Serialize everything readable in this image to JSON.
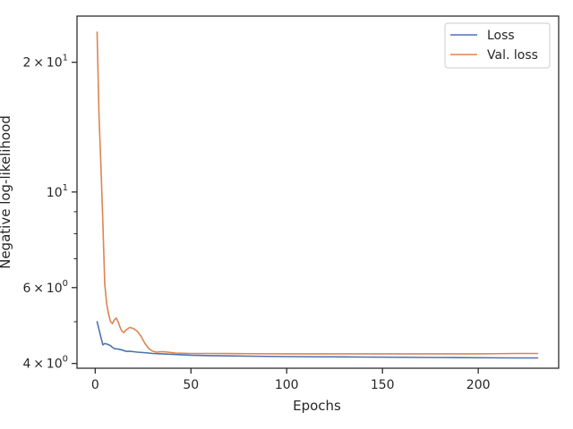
{
  "chart_data": {
    "type": "line",
    "title": "",
    "xlabel": "Epochs",
    "ylabel": "Negative log-likelihood",
    "xlim": [
      -9.5,
      242
    ],
    "ylim": [
      3.9,
      25.6
    ],
    "xscale": "linear",
    "yscale": "log",
    "grid": false,
    "legend_position": "top-right",
    "x_ticks": [
      {
        "value": 0,
        "label": "0"
      },
      {
        "value": 50,
        "label": "50"
      },
      {
        "value": 100,
        "label": "100"
      },
      {
        "value": 150,
        "label": "150"
      },
      {
        "value": 200,
        "label": "200"
      }
    ],
    "y_ticks": [
      {
        "value": 4,
        "base": "4",
        "sym": "×",
        "exp_base": "10",
        "exp": "0"
      },
      {
        "value": 6,
        "base": "6",
        "sym": "×",
        "exp_base": "10",
        "exp": "0"
      },
      {
        "value": 10,
        "base": "",
        "sym": "",
        "exp_base": "10",
        "exp": "1"
      },
      {
        "value": 20,
        "base": "2",
        "sym": "×",
        "exp_base": "10",
        "exp": "1"
      }
    ],
    "y_minor_ticks": [
      3,
      5,
      7,
      8,
      9,
      30
    ],
    "series": [
      {
        "name": "Loss",
        "color": "#4c72b0",
        "points": [
          [
            1,
            5.0
          ],
          [
            2,
            4.8
          ],
          [
            3,
            4.6
          ],
          [
            4,
            4.42
          ],
          [
            5,
            4.45
          ],
          [
            6,
            4.44
          ],
          [
            7,
            4.42
          ],
          [
            8,
            4.4
          ],
          [
            9,
            4.36
          ],
          [
            10,
            4.33
          ],
          [
            12,
            4.32
          ],
          [
            14,
            4.3
          ],
          [
            16,
            4.27
          ],
          [
            18,
            4.27
          ],
          [
            20,
            4.26
          ],
          [
            22,
            4.25
          ],
          [
            25,
            4.24
          ],
          [
            28,
            4.23
          ],
          [
            30,
            4.22
          ],
          [
            35,
            4.21
          ],
          [
            40,
            4.2
          ],
          [
            45,
            4.19
          ],
          [
            50,
            4.18
          ],
          [
            60,
            4.17
          ],
          [
            70,
            4.165
          ],
          [
            80,
            4.16
          ],
          [
            90,
            4.155
          ],
          [
            100,
            4.15
          ],
          [
            120,
            4.145
          ],
          [
            140,
            4.14
          ],
          [
            160,
            4.135
          ],
          [
            180,
            4.13
          ],
          [
            200,
            4.125
          ],
          [
            220,
            4.12
          ],
          [
            231,
            4.12
          ]
        ]
      },
      {
        "name": "Val. loss",
        "color": "#dd8452",
        "points": [
          [
            1,
            23.5
          ],
          [
            2,
            15.0
          ],
          [
            3,
            11.5
          ],
          [
            4,
            8.5
          ],
          [
            5,
            6.1
          ],
          [
            6,
            5.5
          ],
          [
            7,
            5.2
          ],
          [
            8,
            5.0
          ],
          [
            9,
            4.95
          ],
          [
            10,
            5.05
          ],
          [
            11,
            5.1
          ],
          [
            12,
            5.0
          ],
          [
            13,
            4.85
          ],
          [
            14,
            4.75
          ],
          [
            15,
            4.72
          ],
          [
            16,
            4.78
          ],
          [
            18,
            4.85
          ],
          [
            20,
            4.82
          ],
          [
            22,
            4.75
          ],
          [
            24,
            4.62
          ],
          [
            26,
            4.45
          ],
          [
            28,
            4.33
          ],
          [
            30,
            4.27
          ],
          [
            32,
            4.25
          ],
          [
            35,
            4.26
          ],
          [
            38,
            4.25
          ],
          [
            42,
            4.23
          ],
          [
            50,
            4.22
          ],
          [
            60,
            4.22
          ],
          [
            80,
            4.215
          ],
          [
            100,
            4.21
          ],
          [
            120,
            4.21
          ],
          [
            140,
            4.21
          ],
          [
            160,
            4.21
          ],
          [
            180,
            4.21
          ],
          [
            200,
            4.21
          ],
          [
            210,
            4.215
          ],
          [
            220,
            4.22
          ],
          [
            231,
            4.22
          ]
        ]
      }
    ]
  }
}
